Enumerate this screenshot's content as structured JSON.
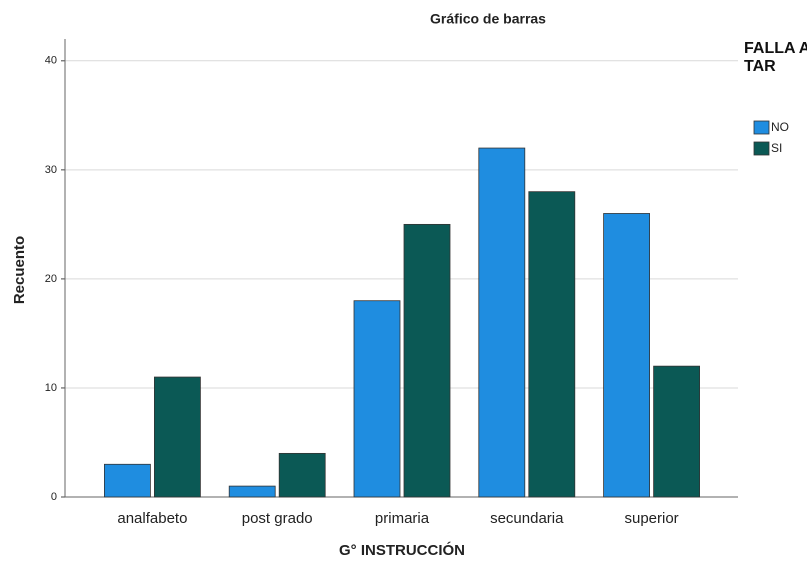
{
  "chart_data": {
    "type": "bar",
    "title": "Gráfico de barras",
    "x_label": "G° INSTRUCCIÓN",
    "y_label": "Recuento",
    "categories": [
      "analfabeto",
      "post grado",
      "primaria",
      "secundaria",
      "superior"
    ],
    "legend_title": "FALLA A TAR",
    "series": [
      {
        "name": "NO",
        "color": "#1f8de0",
        "values": [
          3,
          1,
          18,
          32,
          26
        ]
      },
      {
        "name": "SI",
        "color": "#0b5955",
        "values": [
          11,
          4,
          25,
          28,
          12
        ]
      }
    ],
    "ylim": [
      0,
      42
    ],
    "yticks": [
      0,
      10,
      20,
      30,
      40
    ],
    "grid": true,
    "legend": "right"
  }
}
